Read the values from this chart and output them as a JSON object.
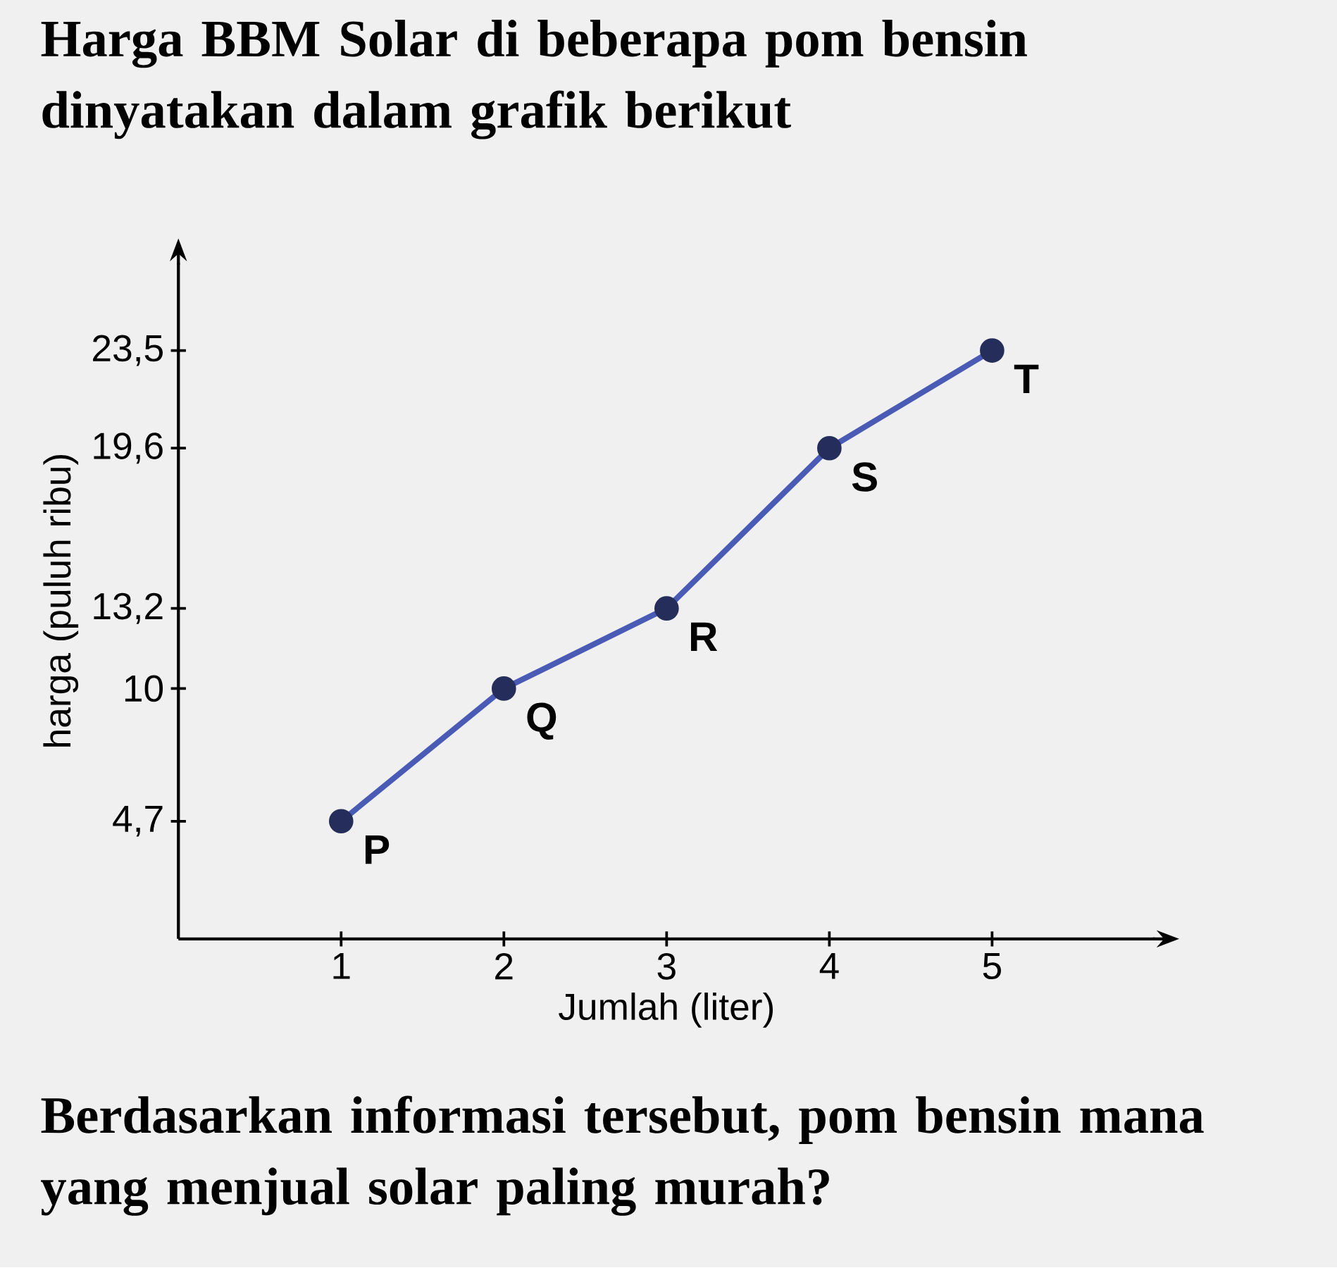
{
  "chart_data": {
    "type": "line",
    "title": "Harga BBM Solar di beberapa pom bensin dinyatakan dalam grafik berikut",
    "xlabel": "Jumlah (liter)",
    "ylabel": "harga (puluh ribu)",
    "x": [
      1,
      2,
      3,
      4,
      5
    ],
    "series": [
      {
        "color": "#4a5bb5",
        "values": [
          4.7,
          10,
          13.2,
          19.6,
          23.5
        ]
      }
    ],
    "xlim": [
      0,
      6
    ],
    "ylim": [
      0,
      27
    ],
    "xticks": [
      1,
      2,
      3,
      4,
      5
    ],
    "yticks": [
      {
        "value": 4.7,
        "label": "4,7"
      },
      {
        "value": 10,
        "label": "10"
      },
      {
        "value": 13.2,
        "label": "13,2"
      },
      {
        "value": 19.6,
        "label": "19,6"
      },
      {
        "value": 23.5,
        "label": "23,5"
      }
    ],
    "marker": "circle",
    "line_style": "solid",
    "grid": false,
    "annotations": [
      {
        "text": "P",
        "x": 1,
        "y": 4.7
      },
      {
        "text": "Q",
        "x": 2,
        "y": 10
      },
      {
        "text": "R",
        "x": 3,
        "y": 13.2
      },
      {
        "text": "S",
        "x": 4,
        "y": 19.6
      },
      {
        "text": "T",
        "x": 5,
        "y": 23.5
      },
      "Berdasarkan informasi tersebut, pom bensin mana yang menjual solar paling murah?"
    ]
  }
}
